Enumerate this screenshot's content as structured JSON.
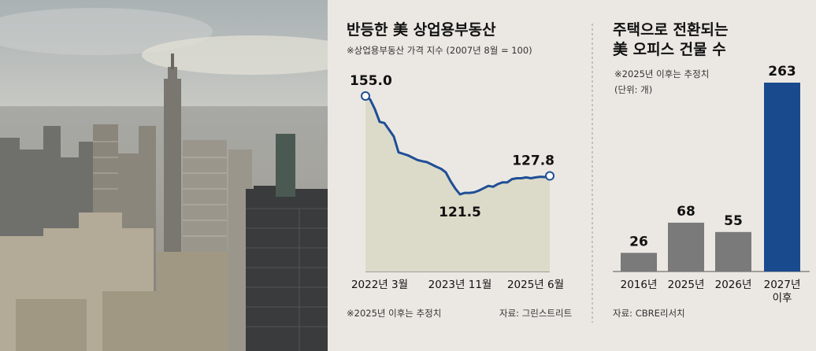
{
  "colors": {
    "line": "#1f4e96",
    "area": "#dcdbc9",
    "bar_gray": "#7a7a7a",
    "bar_blue": "#1a4a8e"
  },
  "left_chart": {
    "title": "반등한 美 상업용부동산",
    "subtitle": "※상업용부동산 가격 지수 (2007년 8월 = 100)",
    "footnote": "※2025년 이후는 추정치",
    "source": "자료: 그린스트리트"
  },
  "right_chart": {
    "title_line1": "주택으로 전환되는",
    "title_line2": "美 오피스 건물 수",
    "note_line1": "※2025년 이후는 추정치",
    "note_line2": "(단위: 개)",
    "source": "자료: CBRE리서치"
  },
  "chart_data": [
    {
      "type": "area",
      "title": "반등한 美 상업용부동산",
      "ylabel": "상업용부동산 가격 지수 (2007년 8월 = 100)",
      "x_tick_labels": [
        "2022년 3월",
        "2023년 11월",
        "2025년 6월"
      ],
      "x": [
        "2022-03",
        "2022-04",
        "2022-05",
        "2022-06",
        "2022-07",
        "2022-08",
        "2022-09",
        "2022-10",
        "2022-11",
        "2022-12",
        "2023-01",
        "2023-02",
        "2023-03",
        "2023-04",
        "2023-05",
        "2023-06",
        "2023-07",
        "2023-08",
        "2023-09",
        "2023-10",
        "2023-11",
        "2023-12",
        "2024-01",
        "2024-02",
        "2024-03",
        "2024-04",
        "2024-05",
        "2024-06",
        "2024-07",
        "2024-08",
        "2024-09",
        "2024-10",
        "2024-11",
        "2024-12",
        "2025-01",
        "2025-02",
        "2025-03",
        "2025-04",
        "2025-05",
        "2025-06"
      ],
      "values": [
        155.0,
        153.8,
        150.5,
        146.2,
        145.8,
        143.5,
        141.2,
        135.8,
        135.3,
        134.8,
        134.0,
        133.2,
        132.8,
        132.5,
        131.7,
        130.9,
        130.2,
        129.0,
        126.0,
        123.5,
        121.5,
        122.0,
        122.0,
        122.2,
        122.8,
        123.6,
        124.4,
        124.1,
        125.0,
        125.6,
        125.6,
        126.7,
        127.0,
        127.0,
        127.3,
        127.0,
        127.3,
        127.5,
        127.4,
        127.8
      ],
      "annotations": [
        {
          "x": "2022-03",
          "label": "155.0"
        },
        {
          "x": "2023-11",
          "label": "121.5"
        },
        {
          "x": "2025-06",
          "label": "127.8"
        }
      ]
    },
    {
      "type": "bar",
      "title": "주택으로 전환되는 美 오피스 건물 수",
      "categories": [
        "2016년",
        "2025년",
        "2026년",
        "2027년 이후"
      ],
      "values": [
        26,
        68,
        55,
        263
      ],
      "highlight_index": 3
    }
  ]
}
